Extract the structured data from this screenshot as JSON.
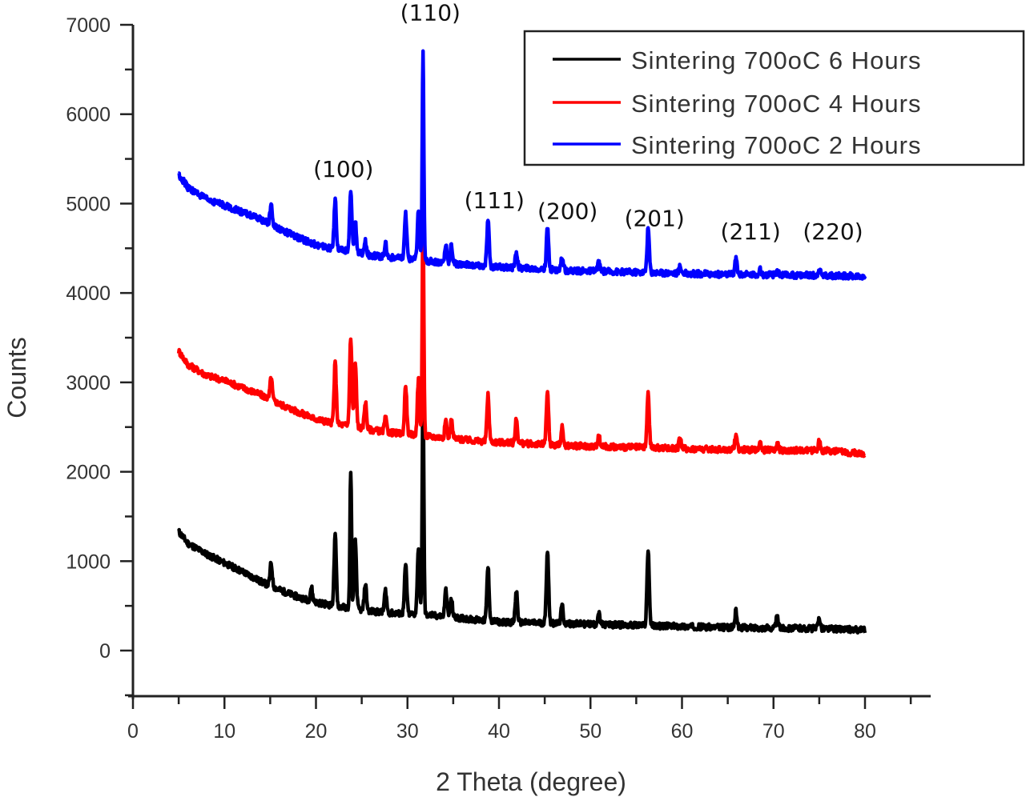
{
  "chart_data": {
    "type": "line",
    "title": "",
    "xlabel": "2 Theta (degree)",
    "ylabel": "Counts",
    "xlim": [
      0,
      87
    ],
    "ylim": [
      -500,
      7000
    ],
    "xticks": [
      0,
      10,
      20,
      30,
      40,
      50,
      60,
      70,
      80
    ],
    "yticks": [
      0,
      1000,
      2000,
      3000,
      4000,
      5000,
      6000,
      7000
    ],
    "grid": false,
    "legend_position": "top-right",
    "annotations": [
      {
        "text": "(100)",
        "x": 23,
        "y": 5300
      },
      {
        "text": "(110)",
        "x": 32.5,
        "y": 7050
      },
      {
        "text": "(111)",
        "x": 39.5,
        "y": 4950
      },
      {
        "text": "(200)",
        "x": 47.5,
        "y": 4830
      },
      {
        "text": "(201)",
        "x": 57,
        "y": 4750
      },
      {
        "text": "(211)",
        "x": 67.5,
        "y": 4600
      },
      {
        "text": "(220)",
        "x": 76.5,
        "y": 4600
      }
    ],
    "series": [
      {
        "name": "Sintering 700oC 6 Hours",
        "color": "#000000",
        "baseline": [
          [
            5,
            1330
          ],
          [
            6,
            1200
          ],
          [
            8,
            1080
          ],
          [
            10,
            980
          ],
          [
            12,
            880
          ],
          [
            14,
            770
          ],
          [
            16,
            680
          ],
          [
            18,
            600
          ],
          [
            20,
            540
          ],
          [
            22,
            500
          ],
          [
            24,
            470
          ],
          [
            26,
            440
          ],
          [
            28,
            420
          ],
          [
            30,
            410
          ],
          [
            32,
            400
          ],
          [
            34,
            380
          ],
          [
            36,
            360
          ],
          [
            38,
            340
          ],
          [
            40,
            320
          ],
          [
            44,
            310
          ],
          [
            48,
            300
          ],
          [
            52,
            290
          ],
          [
            56,
            280
          ],
          [
            60,
            270
          ],
          [
            64,
            260
          ],
          [
            68,
            255
          ],
          [
            72,
            250
          ],
          [
            76,
            245
          ],
          [
            80,
            230
          ]
        ],
        "peaks": [
          [
            15.1,
            250
          ],
          [
            19.5,
            150
          ],
          [
            22.1,
            780
          ],
          [
            23.8,
            1550
          ],
          [
            24.3,
            750
          ],
          [
            25.4,
            300
          ],
          [
            27.6,
            250
          ],
          [
            29.8,
            550
          ],
          [
            31.2,
            750
          ],
          [
            31.7,
            2580
          ],
          [
            34.2,
            300
          ],
          [
            34.8,
            200
          ],
          [
            38.8,
            600
          ],
          [
            41.9,
            350
          ],
          [
            45.3,
            820
          ],
          [
            46.9,
            200
          ],
          [
            50.9,
            120
          ],
          [
            56.3,
            850
          ],
          [
            65.9,
            180
          ],
          [
            70.4,
            120
          ],
          [
            75.0,
            120
          ]
        ]
      },
      {
        "name": "Sintering 700oC 4 Hours",
        "color": "#ff0000",
        "baseline": [
          [
            5,
            3350
          ],
          [
            6,
            3200
          ],
          [
            8,
            3080
          ],
          [
            10,
            3020
          ],
          [
            12,
            2940
          ],
          [
            14,
            2860
          ],
          [
            16,
            2760
          ],
          [
            18,
            2670
          ],
          [
            20,
            2590
          ],
          [
            22,
            2540
          ],
          [
            24,
            2510
          ],
          [
            26,
            2470
          ],
          [
            28,
            2440
          ],
          [
            30,
            2420
          ],
          [
            32,
            2400
          ],
          [
            34,
            2380
          ],
          [
            36,
            2360
          ],
          [
            38,
            2340
          ],
          [
            40,
            2330
          ],
          [
            44,
            2310
          ],
          [
            48,
            2290
          ],
          [
            52,
            2280
          ],
          [
            56,
            2270
          ],
          [
            60,
            2260
          ],
          [
            64,
            2250
          ],
          [
            68,
            2245
          ],
          [
            72,
            2240
          ],
          [
            76,
            2235
          ],
          [
            80,
            2200
          ]
        ],
        "peaks": [
          [
            15.1,
            250
          ],
          [
            22.1,
            680
          ],
          [
            23.8,
            980
          ],
          [
            24.3,
            700
          ],
          [
            25.4,
            300
          ],
          [
            27.6,
            150
          ],
          [
            29.8,
            550
          ],
          [
            31.2,
            620
          ],
          [
            31.7,
            2550
          ],
          [
            34.2,
            200
          ],
          [
            34.8,
            200
          ],
          [
            38.8,
            520
          ],
          [
            41.9,
            270
          ],
          [
            45.3,
            580
          ],
          [
            46.9,
            200
          ],
          [
            50.9,
            120
          ],
          [
            56.3,
            600
          ],
          [
            59.8,
            120
          ],
          [
            65.9,
            180
          ],
          [
            68.5,
            80
          ],
          [
            70.4,
            80
          ],
          [
            75.0,
            100
          ]
        ]
      },
      {
        "name": "Sintering 700oC 2 Hours",
        "color": "#0000ff",
        "baseline": [
          [
            5,
            5330
          ],
          [
            6,
            5180
          ],
          [
            8,
            5050
          ],
          [
            10,
            4980
          ],
          [
            12,
            4900
          ],
          [
            14,
            4820
          ],
          [
            16,
            4720
          ],
          [
            18,
            4620
          ],
          [
            20,
            4540
          ],
          [
            22,
            4490
          ],
          [
            24,
            4460
          ],
          [
            26,
            4420
          ],
          [
            28,
            4400
          ],
          [
            30,
            4380
          ],
          [
            32,
            4360
          ],
          [
            34,
            4340
          ],
          [
            36,
            4320
          ],
          [
            38,
            4300
          ],
          [
            40,
            4290
          ],
          [
            44,
            4270
          ],
          [
            48,
            4250
          ],
          [
            52,
            4240
          ],
          [
            56,
            4230
          ],
          [
            60,
            4220
          ],
          [
            64,
            4210
          ],
          [
            68,
            4205
          ],
          [
            72,
            4200
          ],
          [
            76,
            4195
          ],
          [
            80,
            4190
          ]
        ],
        "peaks": [
          [
            15.1,
            220
          ],
          [
            22.1,
            560
          ],
          [
            23.8,
            660
          ],
          [
            24.3,
            350
          ],
          [
            25.4,
            150
          ],
          [
            27.6,
            150
          ],
          [
            29.8,
            500
          ],
          [
            31.2,
            550
          ],
          [
            31.7,
            2330
          ],
          [
            34.2,
            200
          ],
          [
            34.8,
            200
          ],
          [
            38.8,
            520
          ],
          [
            41.9,
            180
          ],
          [
            45.3,
            460
          ],
          [
            46.9,
            150
          ],
          [
            50.9,
            100
          ],
          [
            56.3,
            500
          ],
          [
            59.8,
            80
          ],
          [
            65.9,
            180
          ],
          [
            68.5,
            60
          ],
          [
            70.4,
            60
          ],
          [
            75.0,
            80
          ]
        ]
      }
    ]
  }
}
